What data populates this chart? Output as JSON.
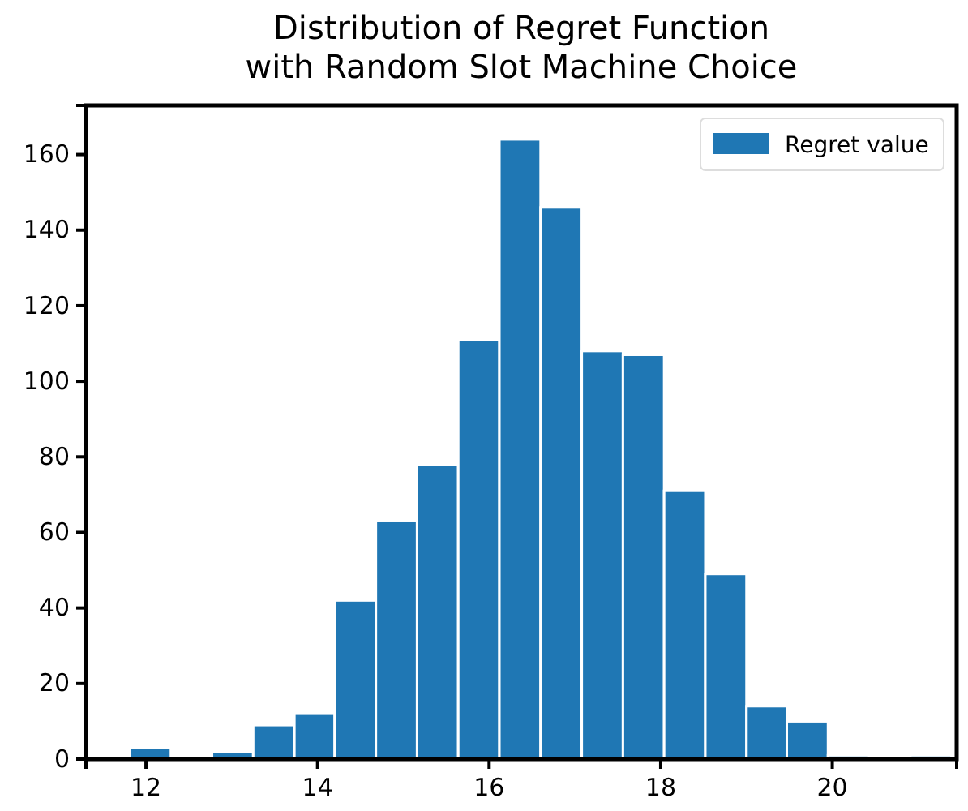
{
  "chart_data": {
    "type": "histogram",
    "title": "Distribution of Regret Function\nwith Random Slot Machine Choice",
    "bins": [
      11.81,
      12.29,
      12.77,
      13.25,
      13.73,
      14.2,
      14.68,
      15.16,
      15.64,
      16.12,
      16.6,
      17.08,
      17.56,
      18.04,
      18.52,
      19.0,
      19.47,
      19.95,
      20.43,
      20.91,
      21.39
    ],
    "series": [
      {
        "name": "Regret value",
        "color": "#1f77b4",
        "values": [
          3,
          0,
          2,
          9,
          12,
          42,
          63,
          78,
          111,
          164,
          146,
          108,
          107,
          71,
          49,
          14,
          10,
          1,
          0,
          1
        ]
      }
    ],
    "xlim": [
      11.3,
      21.45
    ],
    "ylim": [
      0,
      173
    ],
    "xticks": [
      12,
      14,
      16,
      18,
      20
    ],
    "yticks": [
      0,
      20,
      40,
      60,
      80,
      100,
      120,
      140,
      160
    ],
    "legend": "top right",
    "grid": false
  }
}
